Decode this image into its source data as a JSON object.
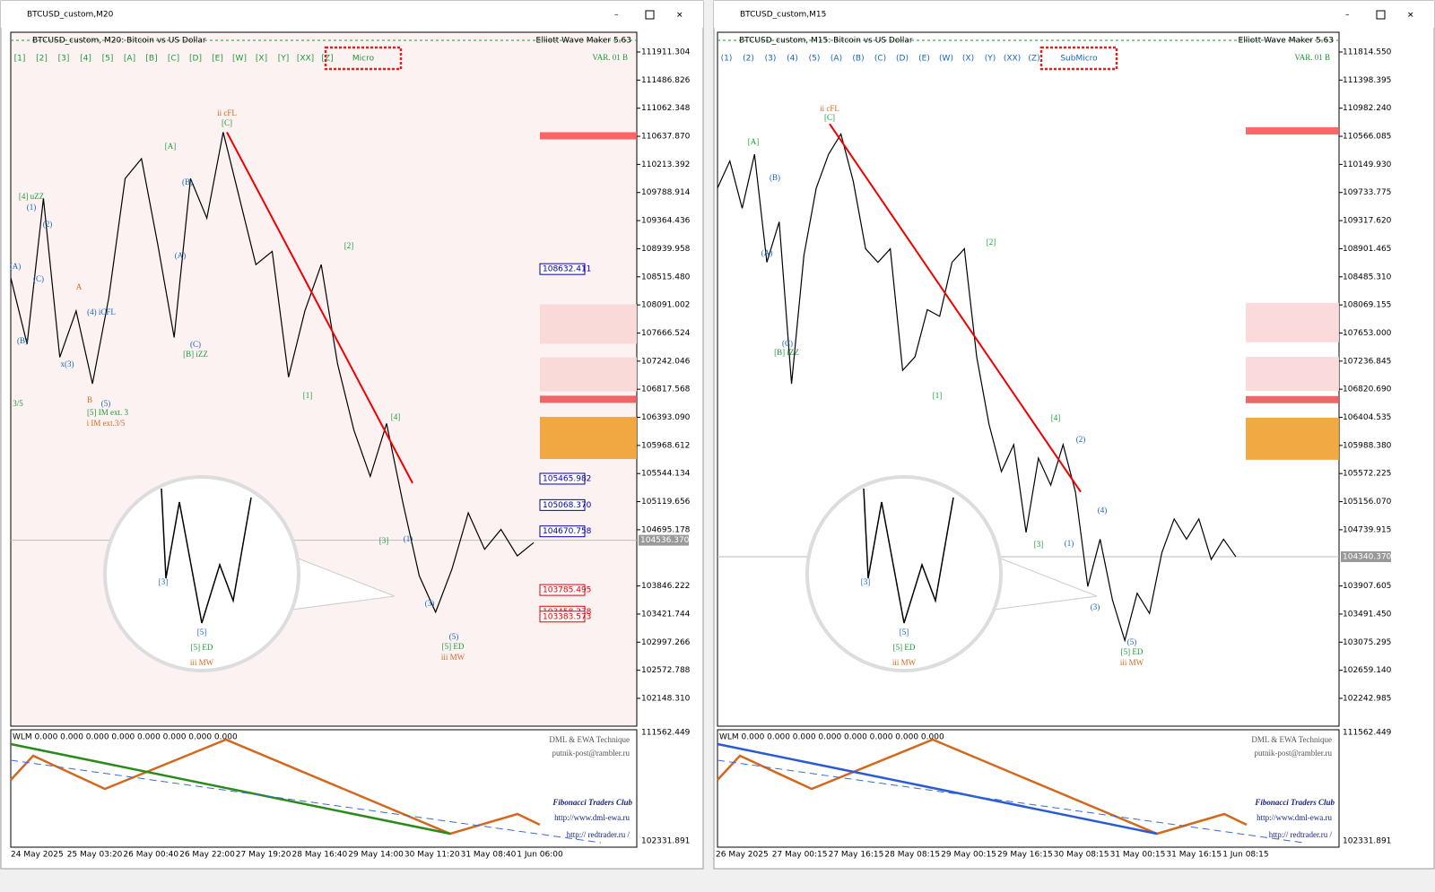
{
  "windows": [
    {
      "title": "BTCUSD_custom,M20",
      "header": "BTCUSD_custom, M20:  Bitcoin vs US Dollar",
      "ea_name": "Elliott Wave Maker 5.63",
      "var_label": "VAR. 01 B",
      "buttons": [
        "[1]",
        "[2]",
        "[3]",
        "[4]",
        "[5]",
        "[A]",
        "[B]",
        "[C]",
        "[D]",
        "[E]",
        "[W]",
        "[X]",
        "[Y]",
        "[XX]",
        "[Z]"
      ],
      "mode_label": "Micro",
      "price_ticks": [
        "111911.304",
        "111486.826",
        "111062.348",
        "110637.870",
        "110213.392",
        "109788.914",
        "109364.436",
        "108939.958",
        "108515.480",
        "108091.002",
        "107666.524",
        "107242.046",
        "106817.568",
        "106393.090",
        "105968.612",
        "105544.134",
        "105119.656",
        "104695.178",
        "103846.222",
        "103421.744",
        "102997.266",
        "102572.788",
        "102148.310"
      ],
      "price_boxes": [
        "108632.411",
        "105465.982",
        "105068.370",
        "104670.758",
        "103785.495",
        "103458.278",
        "103383.573"
      ],
      "current_price": "104536.370",
      "price": [
        108500,
        107500,
        109700,
        107300,
        108000,
        106900,
        108200,
        110000,
        110300,
        109000,
        107600,
        110000,
        109400,
        110700,
        109700,
        108700,
        108900,
        107000,
        108000,
        108700,
        107200,
        106200,
        105500,
        106300,
        105100,
        104000,
        103450,
        104100,
        104950,
        104400,
        104700,
        104300,
        104500
      ],
      "wave_labels": [
        "ii cFL",
        "[C]",
        "[A]",
        "(B)",
        "[4] uZZ",
        "(1)",
        "(2)",
        "(A)",
        "(C)",
        "A",
        "(4) iCFL",
        "(B)",
        "x(3)",
        "B",
        "(5)",
        "[5] IM ext. 3",
        "i IM ext.3/5",
        "3/5",
        "(A)",
        "(C)",
        "[B] iZZ",
        "[2]",
        "[1]",
        "[4]",
        "[3]",
        "(1)",
        "(3)",
        "(5)",
        "[5] ED",
        "iii MW"
      ],
      "zoom_labels": [
        "[3]",
        "[5]",
        "[5] ED",
        "iii MW"
      ],
      "indicator": {
        "readout": "WLM 0.000 0.000 0.000 0.000 0.000 0.000 0.000 0.000",
        "technique": "DML & EWA Technique",
        "email": "putnik-post@rambler.ru",
        "club": "Fibonacci    Traders    Club",
        "site1": "http://www.dml-ewa.ru",
        "site2": "http://  redtrader.ru  /",
        "ticks": [
          "111562.449",
          "102331.891"
        ]
      },
      "dates": [
        "24 May 2025",
        "25 May 03:20",
        "26 May 00:40",
        "26 May 22:00",
        "27 May 19:20",
        "28 May 16:40",
        "29 May 14:00",
        "30 May 11:20",
        "31 May 08:40",
        "1 Jun 06:00"
      ]
    },
    {
      "title": "BTCUSD_custom,M15",
      "header": "BTCUSD_custom, M15:  Bitcoin vs US Dollar",
      "ea_name": "Elliott Wave Maker 5.63",
      "var_label": "VAR. 01 B",
      "buttons": [
        "(1)",
        "(2)",
        "(3)",
        "(4)",
        "(5)",
        "(A)",
        "(B)",
        "(C)",
        "(D)",
        "(E)",
        "(W)",
        "(X)",
        "(Y)",
        "(XX)",
        "(Z)"
      ],
      "mode_label": "SubMicro",
      "price_ticks": [
        "111814.550",
        "111398.395",
        "110982.240",
        "110566.085",
        "110149.930",
        "109733.775",
        "109317.620",
        "108901.465",
        "108485.310",
        "108069.155",
        "107653.000",
        "107236.845",
        "106820.690",
        "106404.535",
        "105988.380",
        "105572.225",
        "105156.070",
        "104739.915",
        "103907.605",
        "103491.450",
        "103075.295",
        "102659.140",
        "102242.985"
      ],
      "price_boxes": [],
      "current_price": "104340.370",
      "price": [
        109800,
        110200,
        109500,
        110300,
        108700,
        109300,
        106900,
        108800,
        109800,
        110300,
        110600,
        109900,
        108900,
        108700,
        108900,
        107100,
        107300,
        108000,
        107900,
        108700,
        108900,
        107300,
        106300,
        105600,
        106000,
        104700,
        105800,
        105400,
        106000,
        105300,
        103900,
        104600,
        103700,
        103100,
        103800,
        103500,
        104400,
        104900,
        104600,
        104900,
        104300,
        104600,
        104340
      ],
      "wave_labels": [
        "ii cFL",
        "[C]",
        "[A]",
        "(B)",
        "(A)",
        "(C)",
        "[B] iZZ",
        "[2]",
        "[1]",
        "[4]",
        "(2)",
        "[3]",
        "(1)",
        "(4)",
        "(3)",
        "(5)",
        "[5] ED",
        "iii MW"
      ],
      "zoom_labels": [
        "[3]",
        "[5]",
        "[5] ED",
        "iii MW"
      ],
      "indicator": {
        "readout": "WLM 0.000 0.000 0.000 0.000 0.000 0.000 0.000 0.000",
        "technique": "DML & EWA Technique",
        "email": "putnik-post@rambler.ru",
        "club": "Fibonacci    Traders    Club",
        "site1": "http://www.dml-ewa.ru",
        "site2": "http://  redtrader.ru  /",
        "ticks": [
          "111562.449",
          "102331.891"
        ]
      },
      "dates": [
        "26 May 2025",
        "27 May 00:15",
        "27 May 16:15",
        "28 May 08:15",
        "29 May 00:15",
        "29 May 16:15",
        "30 May 08:15",
        "31 May 00:15",
        "31 May 16:15",
        "1 Jun 08:15"
      ]
    }
  ]
}
